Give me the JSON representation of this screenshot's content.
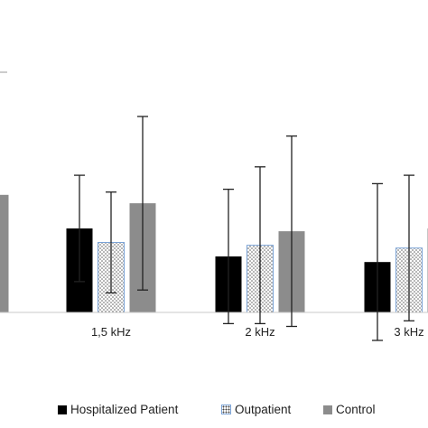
{
  "chart_data": {
    "type": "bar",
    "title": "",
    "xlabel": "",
    "ylabel": "",
    "categories": [
      "",
      "1,5 kHz",
      "2 kHz",
      "3 kHz"
    ],
    "series": [
      {
        "name": "Hospitalized Patient",
        "color": "#000000",
        "pattern": "solid",
        "values": [
          null,
          30,
          20,
          18
        ],
        "err": [
          null,
          19,
          24,
          28
        ]
      },
      {
        "name": "Outpatient",
        "color": "#ffffff",
        "pattern": "dotted",
        "values": [
          null,
          25,
          24,
          23
        ],
        "err": [
          null,
          18,
          28,
          26
        ]
      },
      {
        "name": "Control",
        "color": "#8c8c8c",
        "pattern": "solid",
        "values": [
          42,
          39,
          29,
          30
        ],
        "err": [
          null,
          31,
          34,
          32
        ]
      }
    ],
    "ylim": [
      -12,
      85
    ],
    "grid": false,
    "legend_position": "bottom"
  }
}
